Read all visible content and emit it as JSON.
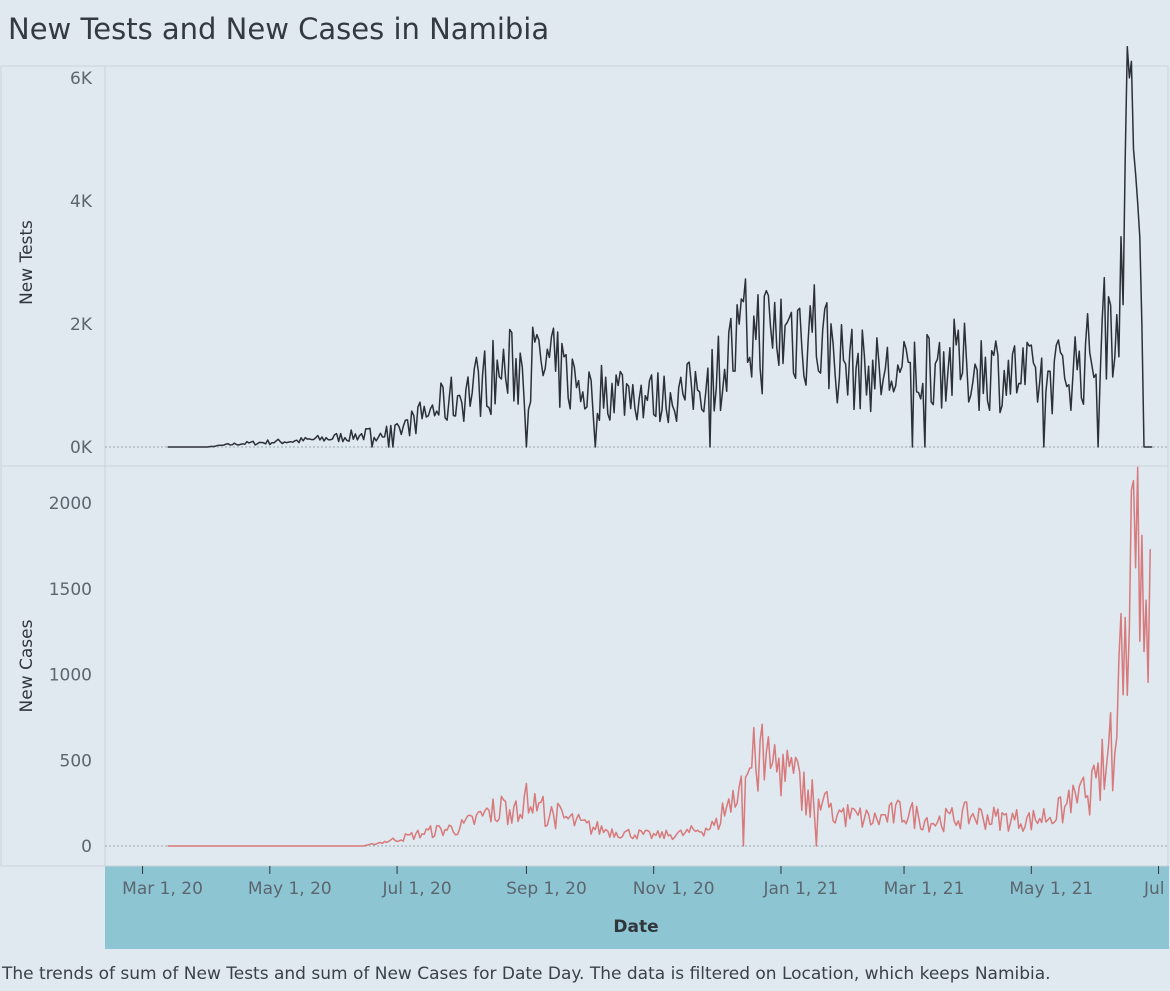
{
  "title": "New Tests and New Cases in Namibia",
  "caption": "The trends of sum of New Tests and sum of New Cases for Date Day. The data is filtered on Location, which keeps Namibia.",
  "colors": {
    "background": "#dfe9ef",
    "tests_line": "#2b3136",
    "cases_line": "#d8797b",
    "date_axis_band": "#8ec5d3"
  },
  "chart_data": [
    {
      "type": "line",
      "ylabel": "New Tests",
      "ylim": [
        0,
        6000
      ],
      "yticks": [
        {
          "value": 0,
          "label": "0K"
        },
        {
          "value": 2000,
          "label": "2K"
        },
        {
          "value": 4000,
          "label": "4K"
        },
        {
          "value": 6000,
          "label": "6K"
        }
      ],
      "series": [
        {
          "values_note": "daily",
          "x": [
            "2020-03-13",
            "2020-04-01",
            "2020-04-15",
            "2020-05-01",
            "2020-05-15",
            "2020-06-01",
            "2020-06-15",
            "2020-07-01",
            "2020-07-15",
            "2020-08-01",
            "2020-08-15",
            "2020-09-01",
            "2020-09-15",
            "2020-10-01",
            "2020-10-15",
            "2020-11-01",
            "2020-11-15",
            "2020-12-01",
            "2020-12-15",
            "2021-01-01",
            "2021-01-15",
            "2021-02-01",
            "2021-02-15",
            "2021-03-01",
            "2021-03-15",
            "2021-04-01",
            "2021-04-15",
            "2021-05-01",
            "2021-05-15",
            "2021-06-01",
            "2021-06-10",
            "2021-06-20",
            "2021-06-24",
            "2021-06-28"
          ],
          "values": [
            0,
            0,
            50,
            80,
            100,
            150,
            200,
            250,
            550,
            850,
            1150,
            1350,
            1250,
            900,
            950,
            800,
            850,
            1200,
            1800,
            1850,
            2000,
            1300,
            1200,
            1150,
            1400,
            1300,
            1250,
            1100,
            1200,
            1500,
            2300,
            5900,
            0,
            0
          ]
        }
      ]
    },
    {
      "type": "line",
      "xlabel": "Date",
      "ylabel": "New Cases",
      "ylim": [
        0,
        2100
      ],
      "yticks": [
        {
          "value": 0,
          "label": "0"
        },
        {
          "value": 500,
          "label": "500"
        },
        {
          "value": 1000,
          "label": "1000"
        },
        {
          "value": 1500,
          "label": "1500"
        },
        {
          "value": 2000,
          "label": "2000"
        }
      ],
      "xticks": [
        {
          "date": "2020-03-01",
          "label": "Mar 1, 20"
        },
        {
          "date": "2020-05-01",
          "label": "May 1, 20"
        },
        {
          "date": "2020-07-01",
          "label": "Jul 1, 20"
        },
        {
          "date": "2020-09-01",
          "label": "Sep 1, 20"
        },
        {
          "date": "2020-11-01",
          "label": "Nov 1, 20"
        },
        {
          "date": "2021-01-01",
          "label": "Jan 1, 21"
        },
        {
          "date": "2021-03-01",
          "label": "Mar 1, 21"
        },
        {
          "date": "2021-05-01",
          "label": "May 1, 21"
        },
        {
          "date": "2021-07-01",
          "label": "Jul 1, 21"
        }
      ],
      "series": [
        {
          "x": [
            "2020-03-13",
            "2020-05-01",
            "2020-06-15",
            "2020-07-01",
            "2020-07-15",
            "2020-08-01",
            "2020-08-15",
            "2020-09-01",
            "2020-09-15",
            "2020-10-01",
            "2020-10-15",
            "2020-11-01",
            "2020-11-15",
            "2020-12-01",
            "2020-12-10",
            "2020-12-20",
            "2021-01-01",
            "2021-01-10",
            "2021-01-20",
            "2021-02-01",
            "2021-02-15",
            "2021-03-01",
            "2021-03-15",
            "2021-04-01",
            "2021-04-15",
            "2021-05-01",
            "2021-05-15",
            "2021-06-01",
            "2021-06-10",
            "2021-06-15",
            "2021-06-20",
            "2021-06-24",
            "2021-06-27"
          ],
          "values": [
            0,
            0,
            0,
            40,
            80,
            110,
            200,
            260,
            180,
            110,
            80,
            60,
            70,
            120,
            350,
            500,
            480,
            350,
            250,
            180,
            150,
            200,
            140,
            180,
            160,
            150,
            200,
            350,
            600,
            1400,
            2050,
            1600,
            1400
          ]
        }
      ]
    }
  ]
}
